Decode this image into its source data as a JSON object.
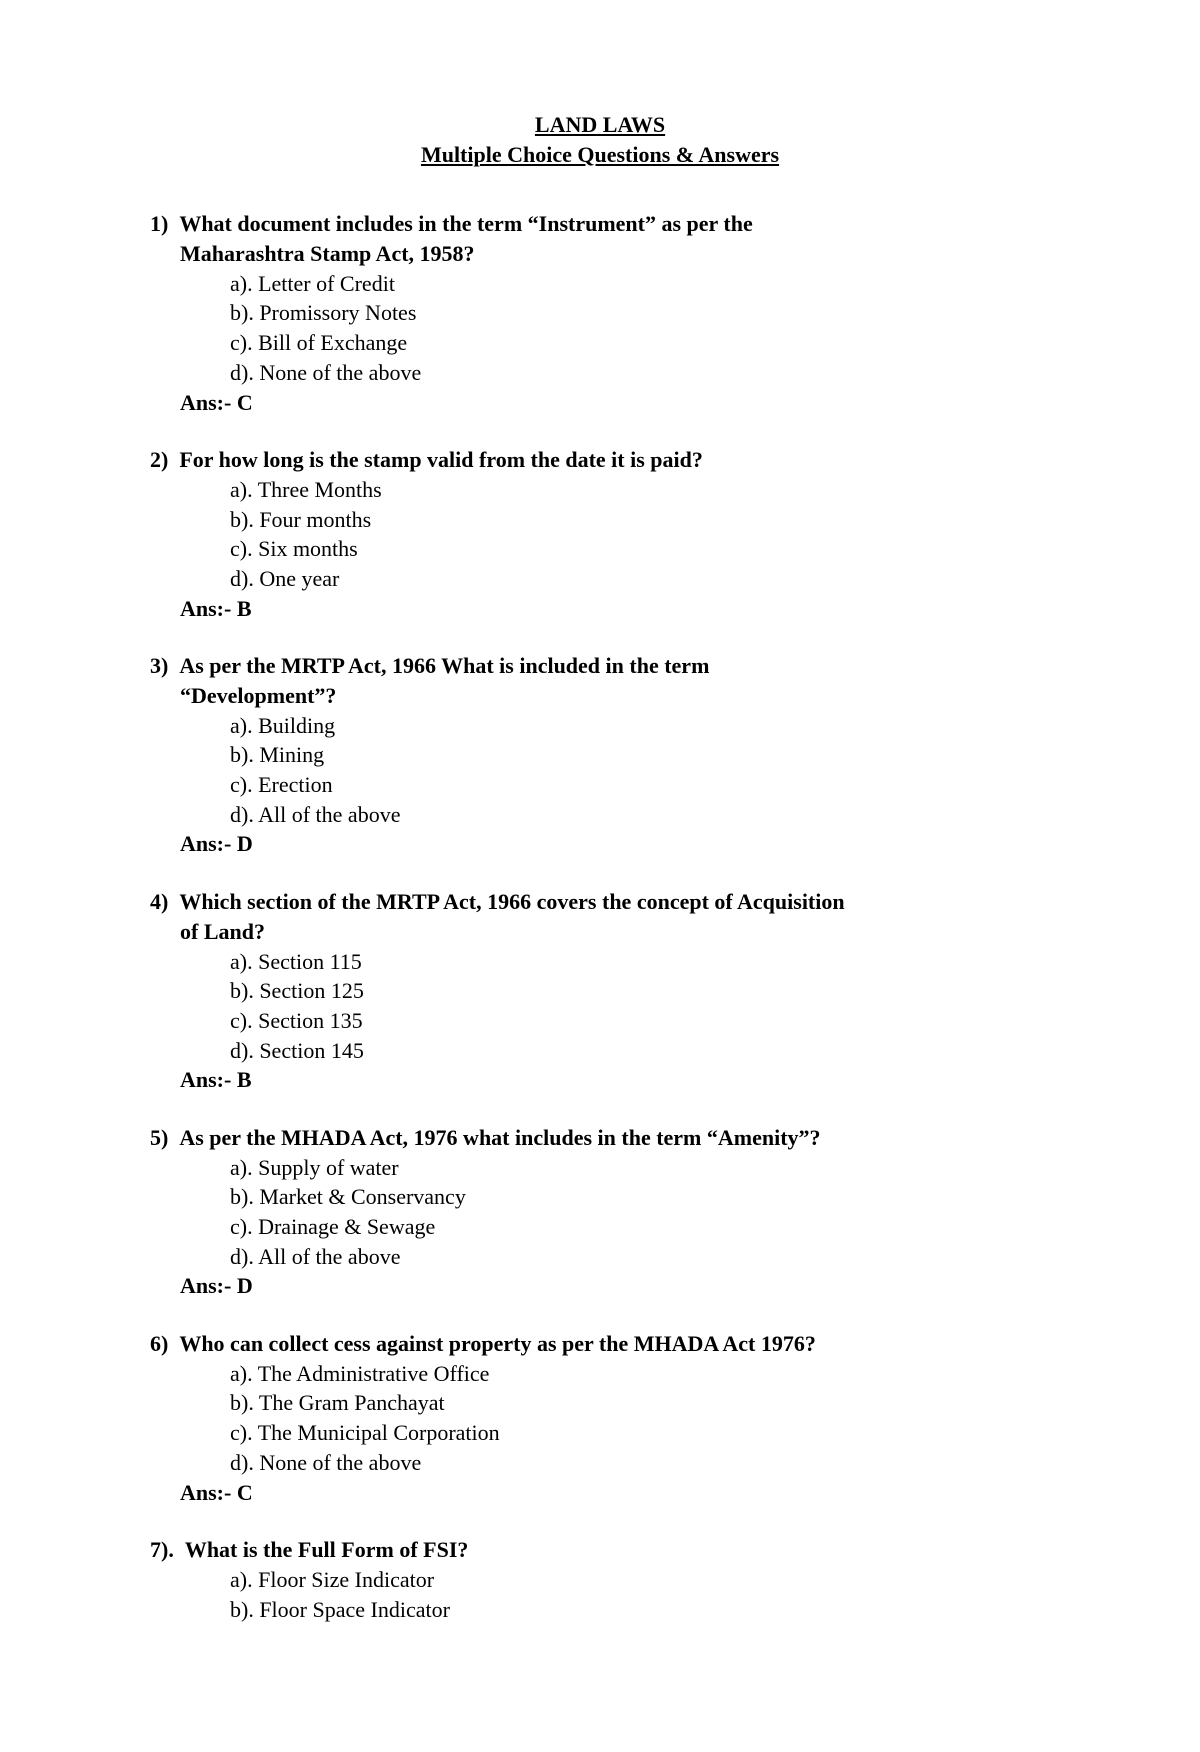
{
  "title": {
    "line1": "LAND LAWS",
    "line2": "Multiple Choice Questions & Answers"
  },
  "answer_prefix": "Ans:-  ",
  "questions": [
    {
      "num": "1)",
      "text": "What document includes in the term “Instrument” as per the",
      "text2": "Maharashtra Stamp Act, 1958?",
      "a": "a). Letter of Credit",
      "b": "b). Promissory Notes",
      "c": "c). Bill of Exchange",
      "d": "d). None of the above",
      "ans": "C"
    },
    {
      "num": "2)",
      "text": "For how long is the stamp valid from the date it is paid?",
      "text2": "",
      "a": "a). Three Months",
      "b": "b). Four months",
      "c": "c). Six months",
      "d": "d). One year",
      "ans": "B"
    },
    {
      "num": "3)",
      "text": "As per the MRTP Act, 1966 What is included in the term",
      "text2": "“Development”?",
      "a": "a). Building",
      "b": "b). Mining",
      "c": "c). Erection",
      "d": "d). All of the above",
      "ans": "D"
    },
    {
      "num": "4)",
      "text": "Which section of the MRTP Act, 1966 covers the concept of Acquisition",
      "text2": "of Land?",
      "a": "a). Section 115",
      "b": "b). Section 125",
      "c": "c). Section 135",
      "d": "d). Section 145",
      "ans": "B"
    },
    {
      "num": "5)",
      "text": "As per the MHADA Act, 1976 what includes in the term “Amenity”?",
      "text2": "",
      "a": "a). Supply of water",
      "b": "b). Market & Conservancy",
      "c": "c). Drainage & Sewage",
      "d": "d). All of the above",
      "ans": "D"
    },
    {
      "num": "6)",
      "text": "Who can collect cess against property as per the MHADA Act 1976?",
      "text2": "",
      "a": "a). The Administrative Office",
      "b": "b). The Gram Panchayat",
      "c": "c). The Municipal Corporation",
      "d": "d). None of the above",
      "ans": "C"
    },
    {
      "num": "7).",
      "text": "What is the Full Form of FSI?",
      "text2": "",
      "a": "a). Floor Size Indicator",
      "b": "b). Floor Space Indicator",
      "c": "",
      "d": "",
      "ans": ""
    }
  ]
}
